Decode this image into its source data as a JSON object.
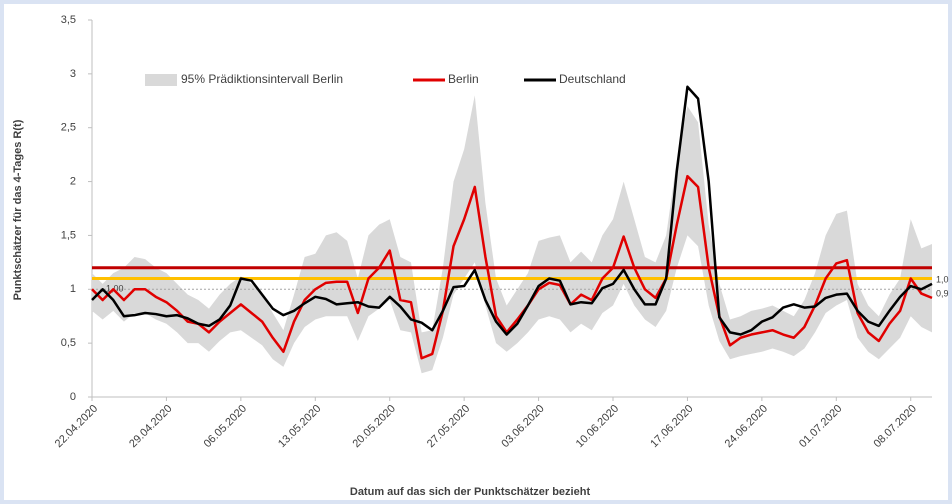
{
  "chart_data": {
    "type": "line",
    "xlabel": "Datum auf das sich der Punktschätzer bezieht",
    "ylabel": "Punktschätzer für das 4-Tages R(t)",
    "categories": [
      "22.04.2020",
      null,
      null,
      null,
      null,
      null,
      null,
      "29.04.2020",
      null,
      null,
      null,
      null,
      null,
      null,
      "06.05.2020",
      null,
      null,
      null,
      null,
      null,
      null,
      "13.05.2020",
      null,
      null,
      null,
      null,
      null,
      null,
      "20.05.2020",
      null,
      null,
      null,
      null,
      null,
      null,
      "27.05.2020",
      null,
      null,
      null,
      null,
      null,
      null,
      "03.06.2020",
      null,
      null,
      null,
      null,
      null,
      null,
      "10.06.2020",
      null,
      null,
      null,
      null,
      null,
      null,
      "17.06.2020",
      null,
      null,
      null,
      null,
      null,
      null,
      "24.06.2020",
      null,
      null,
      null,
      null,
      null,
      null,
      "01.07.2020",
      null,
      null,
      null,
      null,
      null,
      null,
      "08.07.2020",
      null,
      null
    ],
    "ylim": [
      0,
      3.5
    ],
    "yticks": [
      0,
      {
        "value": 0.5,
        "label": "0,5"
      },
      1,
      {
        "value": 1.5,
        "label": "1,5"
      },
      2,
      {
        "value": 2.5,
        "label": "2,5"
      },
      3,
      {
        "value": 3.5,
        "label": "3,5"
      }
    ],
    "band": {
      "name": "95% Prädiktionsintervall Berlin",
      "color": "#d9d9d9",
      "upper": [
        1.15,
        1.05,
        1.15,
        1.2,
        1.3,
        1.28,
        1.2,
        1.15,
        1.05,
        0.95,
        0.9,
        0.82,
        0.95,
        1.05,
        1.12,
        1.05,
        0.95,
        0.78,
        0.62,
        0.95,
        1.3,
        1.33,
        1.5,
        1.53,
        1.45,
        1.1,
        1.5,
        1.6,
        1.65,
        1.3,
        1.25,
        0.6,
        0.62,
        1.2,
        2.0,
        2.3,
        2.8,
        1.8,
        1.1,
        0.85,
        1.0,
        1.15,
        1.45,
        1.48,
        1.5,
        1.25,
        1.35,
        1.25,
        1.5,
        1.65,
        2.0,
        1.65,
        1.3,
        1.25,
        1.5,
        2.2,
        2.7,
        2.55,
        1.6,
        1.05,
        0.72,
        0.75,
        0.8,
        0.82,
        0.85,
        0.8,
        0.75,
        0.9,
        1.15,
        1.5,
        1.7,
        1.73,
        1.05,
        0.85,
        0.75,
        0.95,
        1.1,
        1.65,
        1.38,
        1.42
      ],
      "lower": [
        0.8,
        0.72,
        0.8,
        0.7,
        0.78,
        0.78,
        0.72,
        0.68,
        0.6,
        0.5,
        0.5,
        0.42,
        0.52,
        0.6,
        0.62,
        0.55,
        0.48,
        0.35,
        0.28,
        0.5,
        0.65,
        0.72,
        0.75,
        0.75,
        0.75,
        0.52,
        0.75,
        0.82,
        0.9,
        0.62,
        0.6,
        0.22,
        0.25,
        0.55,
        0.95,
        1.1,
        1.25,
        0.85,
        0.5,
        0.42,
        0.5,
        0.6,
        0.72,
        0.75,
        0.72,
        0.6,
        0.68,
        0.62,
        0.78,
        0.85,
        1.05,
        0.85,
        0.72,
        0.65,
        0.8,
        1.2,
        1.5,
        1.4,
        0.85,
        0.52,
        0.35,
        0.38,
        0.4,
        0.42,
        0.45,
        0.42,
        0.38,
        0.45,
        0.6,
        0.78,
        0.85,
        0.9,
        0.55,
        0.42,
        0.35,
        0.45,
        0.55,
        0.75,
        0.65,
        0.6
      ]
    },
    "series": [
      {
        "name": "Berlin",
        "color": "#e00000",
        "end_label": "0,9",
        "values": [
          1.0,
          0.9,
          1.0,
          0.9,
          1.0,
          1.0,
          0.93,
          0.88,
          0.8,
          0.7,
          0.68,
          0.6,
          0.7,
          0.78,
          0.86,
          0.78,
          0.7,
          0.55,
          0.42,
          0.7,
          0.9,
          1.0,
          1.06,
          1.07,
          1.07,
          0.78,
          1.1,
          1.2,
          1.36,
          0.9,
          0.88,
          0.36,
          0.4,
          0.8,
          1.4,
          1.65,
          1.95,
          1.3,
          0.75,
          0.6,
          0.72,
          0.85,
          1.0,
          1.06,
          1.04,
          0.86,
          0.95,
          0.9,
          1.1,
          1.2,
          1.49,
          1.2,
          1.0,
          0.92,
          1.1,
          1.6,
          2.05,
          1.95,
          1.2,
          0.75,
          0.48,
          0.55,
          0.58,
          0.6,
          0.62,
          0.58,
          0.55,
          0.65,
          0.85,
          1.1,
          1.24,
          1.27,
          0.78,
          0.6,
          0.52,
          0.68,
          0.8,
          1.1,
          0.96,
          0.92
        ]
      },
      {
        "name": "Deutschland",
        "color": "#000000",
        "end_label": "1,0",
        "values": [
          0.9,
          1.0,
          0.9,
          0.75,
          0.76,
          0.78,
          0.77,
          0.75,
          0.76,
          0.73,
          0.68,
          0.66,
          0.72,
          0.85,
          1.1,
          1.08,
          0.95,
          0.82,
          0.76,
          0.8,
          0.87,
          0.93,
          0.91,
          0.86,
          0.87,
          0.88,
          0.84,
          0.83,
          0.93,
          0.84,
          0.72,
          0.69,
          0.62,
          0.8,
          1.02,
          1.03,
          1.18,
          0.9,
          0.7,
          0.58,
          0.68,
          0.85,
          1.03,
          1.1,
          1.08,
          0.86,
          0.88,
          0.87,
          1.01,
          1.05,
          1.18,
          1.0,
          0.86,
          0.86,
          1.1,
          2.1,
          2.88,
          2.77,
          2.0,
          0.74,
          0.6,
          0.58,
          0.62,
          0.7,
          0.74,
          0.83,
          0.86,
          0.83,
          0.84,
          0.92,
          0.95,
          0.96,
          0.8,
          0.7,
          0.66,
          0.8,
          0.93,
          1.03,
          1.0,
          1.05
        ]
      }
    ],
    "reference_lines": [
      {
        "value": 1.0,
        "color": "#a6a6a6",
        "dashed": true,
        "label": "1,00"
      },
      {
        "value": 1.1,
        "color": "#ffc000",
        "dashed": false
      },
      {
        "value": 1.2,
        "color": "#c00000",
        "dashed": false
      }
    ]
  }
}
